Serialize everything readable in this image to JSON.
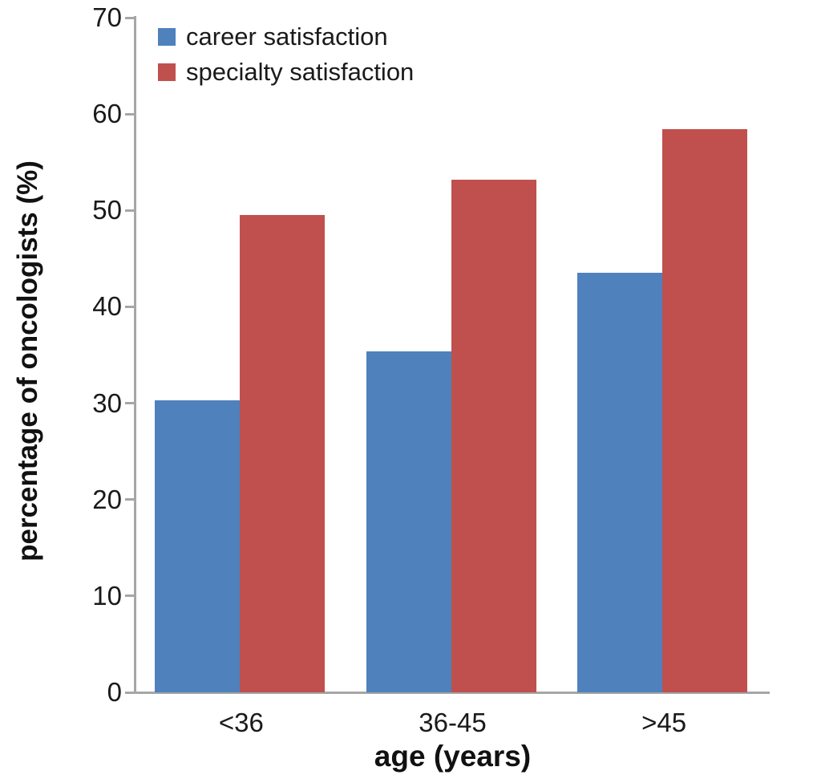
{
  "chart_data": {
    "type": "bar",
    "title": "",
    "categories": [
      "<36",
      "36-45",
      ">45"
    ],
    "series": [
      {
        "name": "career satisfaction",
        "color": "#4f81bd",
        "values": [
          30.3,
          35.4,
          43.5
        ]
      },
      {
        "name": "specialty satisfaction",
        "color": "#c0504d",
        "values": [
          49.5,
          53.2,
          58.4
        ]
      }
    ],
    "xlabel": "age (years)",
    "ylabel": "percentage of oncologists (%)",
    "ylim": [
      0,
      70
    ],
    "yticks": [
      0,
      10,
      20,
      30,
      40,
      50,
      60,
      70
    ],
    "grid": false,
    "legend_position": "top-left-inside",
    "colors": {
      "axis": "#a6a6a6",
      "text": "#1a1a1a",
      "background": "#ffffff"
    }
  }
}
